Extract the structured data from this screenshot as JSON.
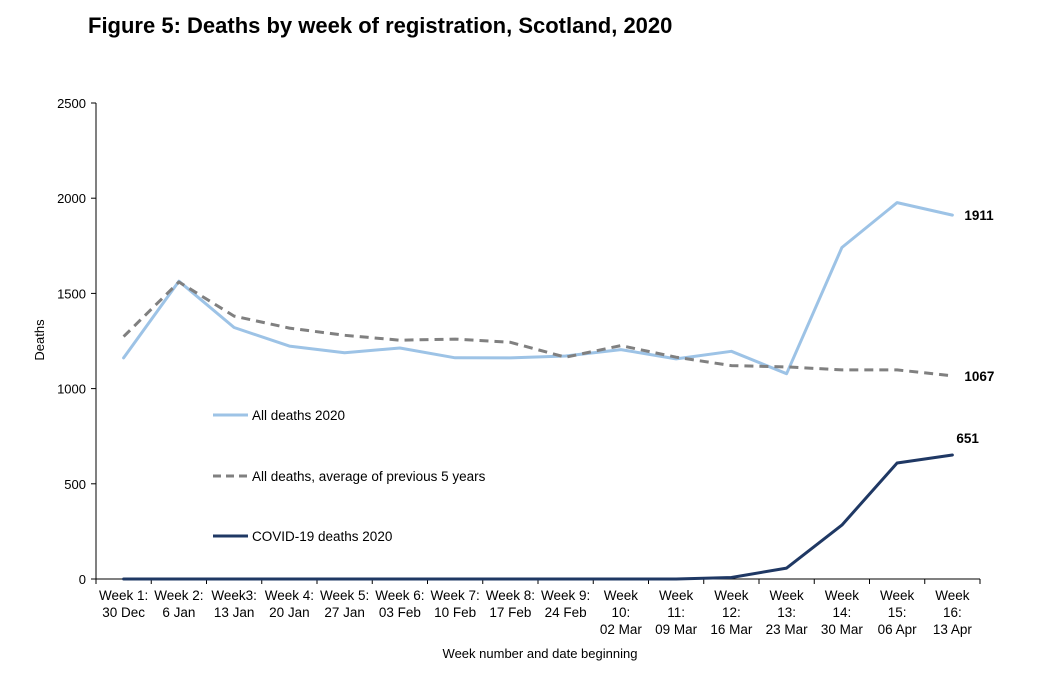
{
  "title": "Figure 5: Deaths by week of registration, Scotland, 2020",
  "chart_data": {
    "type": "line",
    "title": "Figure 5: Deaths by week of registration, Scotland, 2020",
    "xlabel": "Week number and date beginning",
    "ylabel": "Deaths",
    "ylim": [
      0,
      2500
    ],
    "yticks": [
      "0",
      "500",
      "1000",
      "1500",
      "2000",
      "2500"
    ],
    "categories": [
      [
        "Week 1:",
        "30 Dec"
      ],
      [
        "Week 2:",
        "6 Jan"
      ],
      [
        "Week3:",
        "13 Jan"
      ],
      [
        "Week 4:",
        "20 Jan"
      ],
      [
        "Week 5:",
        "27 Jan"
      ],
      [
        "Week 6:",
        "03 Feb"
      ],
      [
        "Week 7:",
        "10 Feb"
      ],
      [
        "Week 8:",
        "17 Feb"
      ],
      [
        "Week 9:",
        "24 Feb"
      ],
      [
        "Week",
        "10:",
        "02 Mar"
      ],
      [
        "Week",
        "11:",
        "09 Mar"
      ],
      [
        "Week",
        "12:",
        "16 Mar"
      ],
      [
        "Week",
        "13:",
        "23 Mar"
      ],
      [
        "Week",
        "14:",
        "30 Mar"
      ],
      [
        "Week",
        "15:",
        "06 Apr"
      ],
      [
        "Week",
        "16:",
        "13 Apr"
      ]
    ],
    "series": [
      {
        "name": "All deaths 2020",
        "color": "#9dc3e6",
        "dash": false,
        "values": [
          1161,
          1564,
          1321,
          1223,
          1188,
          1213,
          1162,
          1161,
          1171,
          1205,
          1156,
          1196,
          1078,
          1741,
          1977,
          1911
        ],
        "end_label": "1911"
      },
      {
        "name": "All deaths, average of previous 5 years",
        "color": "#808080",
        "dash": true,
        "values": [
          1273,
          1560,
          1381,
          1318,
          1280,
          1254,
          1260,
          1243,
          1165,
          1226,
          1165,
          1121,
          1114,
          1098,
          1098,
          1067
        ],
        "end_label": "1067"
      },
      {
        "name": "COVID-19 deaths 2020",
        "color": "#1f3864",
        "dash": false,
        "values": [
          0,
          0,
          0,
          0,
          0,
          0,
          0,
          0,
          0,
          0,
          0,
          8,
          57,
          283,
          609,
          651
        ],
        "end_label": "651"
      }
    ],
    "legend_position": "inside-left",
    "grid": false
  }
}
